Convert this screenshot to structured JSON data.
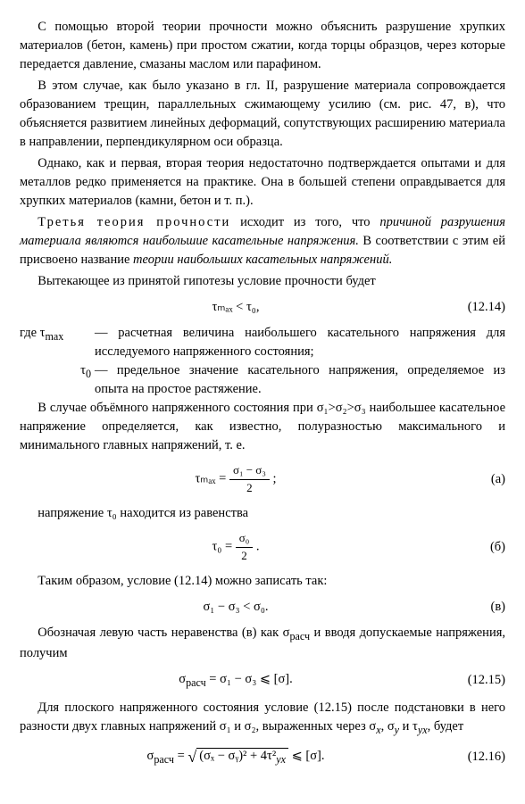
{
  "paras": {
    "p1": "С помощью второй теории прочности можно объяснить разрушение хрупких материалов (бетон, камень) при простом сжатии, когда торцы образцов, через которые передается давление, смазаны маслом или парафином.",
    "p2": "В этом случае, как было указано в гл. II, разрушение материала сопровождается образованием трещин, параллельных сжимающему усилию (см. рис. 47, в), что объясняется развитием линейных деформаций, сопутствующих расширению материала в направлении, перпендикулярном оси образца.",
    "p3": "Однако, как и первая, вторая теория недостаточно подтверждается опытами и для металлов редко применяется на практике. Она в большей степени оправдывается для хрупких материалов (камни, бетон и т. п.).",
    "p4_a": "Третья теория прочности",
    "p4_b": " исходит из того, что ",
    "p4_c": "причиной разрушения материала являются наибольшие касательные напряжения.",
    "p4_d": " В соответствии с этим ей присвоено название ",
    "p4_e": "теории наибольших касательных напряжений.",
    "p5": "Вытекающее из принятой гипотезы условие прочности будет",
    "d1_l": "где τ",
    "d1_l2": "max",
    "d1_r": " — расчетная величина наибольшего касательного напряжения для исследуемого напряженного состояния;",
    "d2_l": "τ",
    "d2_l2": "0",
    "d2_r": " — предельное значение касательного напряжения, определяемое из опыта на простое растяжение.",
    "p6": "В случае объёмного напряженного состояния при σ₁>σ₂>σ₃ наибольшее касательное напряжение определяется, как известно, полуразностью максимального и минимального главных напряжений, т. е.",
    "p7": "напряжение τ₀ находится из равенства",
    "p8": "Таким образом, условие (12.14) можно записать так:",
    "p9_a": "Обозначая левую часть неравенства (в) как σ",
    "p9_b": " и вводя допускаемые напряжения, получим",
    "p10_a": "Для плоского напряженного состояния условие (12.15) после подстановки в него разности двух главных напряжений σ₁ и σ₂, выраженных через σ",
    "p10_b": ", σ",
    "p10_c": " и τ",
    "p10_d": ", будет"
  },
  "eq": {
    "e1_body": "τₘₐₓ < τ₀,",
    "e1_num": "(12.14)",
    "ea_pre": "τₘₐₓ = ",
    "ea_num": "σ₁ − σ₃",
    "ea_den": "2",
    "ea_post": " ;",
    "ea_lab": "(а)",
    "eb_pre": "τ₀ = ",
    "eb_num": "σ₀",
    "eb_den": "2",
    "eb_post": " .",
    "eb_lab": "(б)",
    "ev_body": "σ₁ − σ₃ < σ₀.",
    "ev_lab": "(в)",
    "e15_body": "σ",
    "e15_body2": " = σ₁ − σ₃ ⩽ [σ].",
    "e15_lab": "(12.15)",
    "e16_pre": "σ",
    "e16_pre2": " = ",
    "e16_sqrt": "(σₓ − σᵧ)² + 4τ²",
    "e16_post": " ⩽ [σ].",
    "e16_lab": "(12.16)"
  },
  "sub": {
    "rasch": "расч",
    "x": "x",
    "y": "y",
    "yx": "yx"
  }
}
